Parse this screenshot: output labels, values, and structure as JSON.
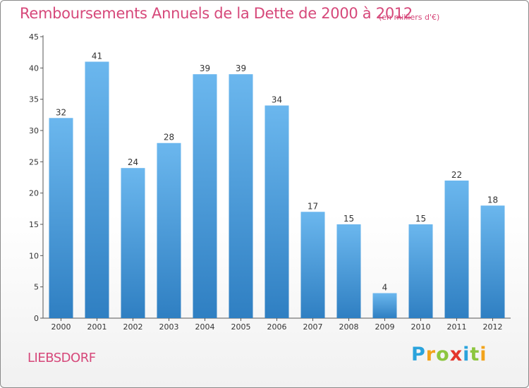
{
  "header": {
    "title": "Remboursements Annuels de la Dette de 2000 à 2012",
    "subtitle": "(en milliers d'€)"
  },
  "location": "LIEBSDORF",
  "brand": {
    "name": "Proxiti",
    "letters": [
      "P",
      "r",
      "o",
      "x",
      "i",
      "t",
      "i"
    ],
    "letter_colors": [
      "#2aa3dc",
      "#f2a31b",
      "#8cc63e",
      "#e4352c",
      "#2aa3dc",
      "#8cc63e",
      "#f2a31b"
    ]
  },
  "colors": {
    "accent": "#d6487a",
    "bar_light": "#6bb7ee",
    "bar_dark": "#2f7fc2"
  },
  "chart_data": {
    "type": "bar",
    "categories": [
      "2000",
      "2001",
      "2002",
      "2003",
      "2004",
      "2005",
      "2006",
      "2007",
      "2008",
      "2009",
      "2010",
      "2011",
      "2012"
    ],
    "values": [
      32,
      41,
      24,
      28,
      39,
      39,
      34,
      17,
      15,
      4,
      15,
      22,
      18
    ],
    "yticks": [
      0,
      5,
      10,
      15,
      20,
      25,
      30,
      35,
      40,
      45
    ],
    "ylim": [
      0,
      45
    ],
    "grid": false,
    "data_labels": true
  }
}
